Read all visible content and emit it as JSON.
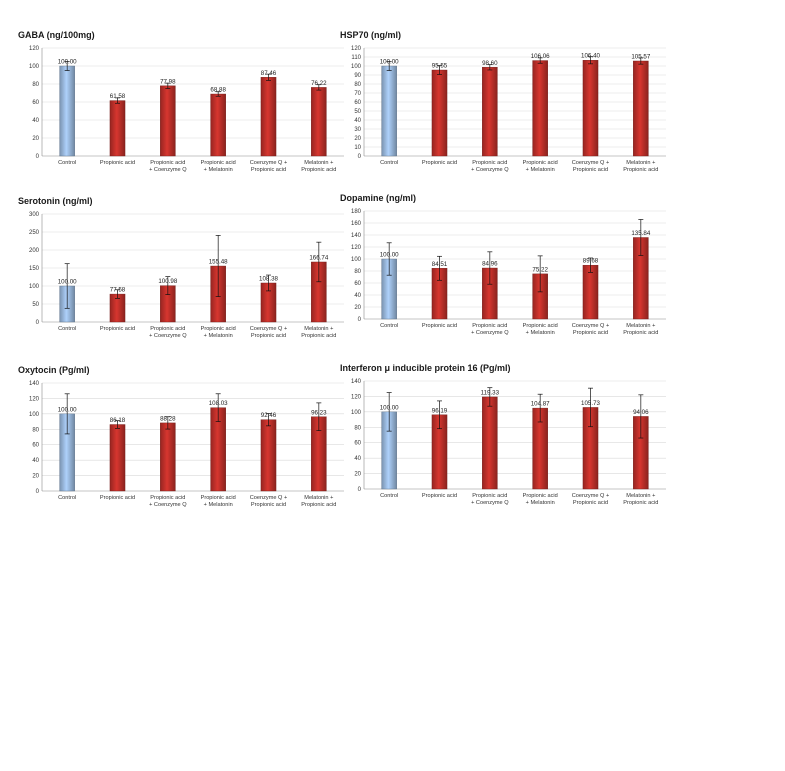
{
  "chart_data": [
    {
      "type": "bar",
      "title": "GABA (ng/100mg)",
      "categories": [
        [
          "Control"
        ],
        [
          "Propionic acid"
        ],
        [
          "Propionic acid",
          "+ Coenzyme Q"
        ],
        [
          "Propionic acid",
          "+ Melatonin"
        ],
        [
          "Coenzyme Q +",
          "Propionic acid"
        ],
        [
          "Melatonin +",
          "Propionic acid"
        ]
      ],
      "values": [
        100.0,
        61.58,
        77.98,
        68.88,
        87.46,
        76.22
      ],
      "value_labels": [
        "100.00",
        "61.58",
        "77.98",
        "68.88",
        "87.46",
        "76.22"
      ],
      "errors": [
        5,
        3,
        3,
        2.5,
        3.5,
        3
      ],
      "ylim": [
        0,
        120
      ],
      "yticks": [
        "0",
        "20",
        "40",
        "60",
        "80",
        "100",
        "120"
      ],
      "grid": true,
      "colors": {
        "control": "#9bbbe0",
        "treatment": "#c0302a"
      }
    },
    {
      "type": "bar",
      "title": "HSP70 (ng/ml)",
      "categories": [
        [
          "Control"
        ],
        [
          "Propionic acid"
        ],
        [
          "Propionic acid",
          "+ Coenzyme Q"
        ],
        [
          "Propionic acid",
          "+ Melatonin"
        ],
        [
          "Coenzyme Q +",
          "Propionic acid"
        ],
        [
          "Melatonin +",
          "Propionic acid"
        ]
      ],
      "values": [
        100.0,
        95.55,
        98.6,
        106.06,
        106.4,
        105.57
      ],
      "value_labels": [
        "100.00",
        "95.55",
        "98.60",
        "106.06",
        "106.40",
        "105.57"
      ],
      "errors": [
        5,
        5,
        3,
        3,
        4,
        3.5
      ],
      "ylim": [
        0,
        120
      ],
      "yticks": [
        "0",
        "10",
        "20",
        "30",
        "40",
        "50",
        "60",
        "70",
        "80",
        "90",
        "100",
        "110",
        "120"
      ],
      "grid": true,
      "colors": {
        "control": "#9bbbe0",
        "treatment": "#c0302a"
      }
    },
    {
      "type": "bar",
      "title": "Serotonin (ng/ml)",
      "categories": [
        [
          "Control"
        ],
        [
          "Propionic acid"
        ],
        [
          "Propionic acid",
          "+ Coenzyme Q"
        ],
        [
          "Propionic acid",
          "+ Melatonin"
        ],
        [
          "Coenzyme Q +",
          "Propionic acid"
        ],
        [
          "Melatonin +",
          "Propionic acid"
        ]
      ],
      "values": [
        100.0,
        77.58,
        100.98,
        155.48,
        108.38,
        166.74
      ],
      "value_labels": [
        "100.00",
        "77.58",
        "100.98",
        "155.48",
        "108.38",
        "166.74"
      ],
      "errors": [
        62,
        12,
        25,
        85,
        22,
        55
      ],
      "ylim": [
        0,
        300
      ],
      "yticks": [
        "0",
        "50",
        "100",
        "150",
        "200",
        "250",
        "300"
      ],
      "grid": true,
      "colors": {
        "control": "#9bbbe0",
        "treatment": "#c0302a"
      }
    },
    {
      "type": "bar",
      "title": "Dopamine (ng/ml)",
      "categories": [
        [
          "Control"
        ],
        [
          "Propionic acid"
        ],
        [
          "Propionic acid",
          "+ Coenzyme Q"
        ],
        [
          "Propionic acid",
          "+ Melatonin"
        ],
        [
          "Coenzyme Q +",
          "Propionic acid"
        ],
        [
          "Melatonin +",
          "Propionic acid"
        ]
      ],
      "values": [
        100.0,
        84.51,
        84.96,
        75.22,
        89.68,
        135.84
      ],
      "value_labels": [
        "100.00",
        "84.51",
        "84.96",
        "75.22",
        "89.68",
        "135.84"
      ],
      "errors": [
        27,
        20,
        27,
        30,
        12,
        30
      ],
      "ylim": [
        0,
        180
      ],
      "yticks": [
        "0",
        "20",
        "40",
        "60",
        "80",
        "100",
        "120",
        "140",
        "160",
        "180"
      ],
      "grid": true,
      "colors": {
        "control": "#9bbbe0",
        "treatment": "#c0302a"
      }
    },
    {
      "type": "bar",
      "title": "Oxytocin (Pg/ml)",
      "categories": [
        [
          "Control"
        ],
        [
          "Propionic acid"
        ],
        [
          "Propionic acid",
          "+ Coenzyme Q"
        ],
        [
          "Propionic acid",
          "+ Melatonin"
        ],
        [
          "Coenzyme Q +",
          "Propionic acid"
        ],
        [
          "Melatonin +",
          "Propionic acid"
        ]
      ],
      "values": [
        100.0,
        86.18,
        88.28,
        108.03,
        92.46,
        96.23
      ],
      "value_labels": [
        "100.00",
        "86.18",
        "88.28",
        "108.03",
        "92.46",
        "96.23"
      ],
      "errors": [
        26,
        5,
        8,
        18,
        8,
        18
      ],
      "ylim": [
        0,
        140
      ],
      "yticks": [
        "0",
        "20",
        "40",
        "60",
        "80",
        "100",
        "120",
        "140"
      ],
      "grid": true,
      "colors": {
        "control": "#9bbbe0",
        "treatment": "#c0302a"
      }
    },
    {
      "type": "bar",
      "title": "Interferon μ inducible protein 16 (Pg/ml)",
      "categories": [
        [
          "Control"
        ],
        [
          "Propionic acid"
        ],
        [
          "Propionic acid",
          "+ Coenzyme Q"
        ],
        [
          "Propionic acid",
          "+ Melatonin"
        ],
        [
          "Coenzyme Q +",
          "Propionic acid"
        ],
        [
          "Melatonin +",
          "Propionic acid"
        ]
      ],
      "values": [
        100.0,
        96.19,
        119.33,
        104.87,
        105.73,
        94.06
      ],
      "value_labels": [
        "100.00",
        "96.19",
        "119.33",
        "104.87",
        "105.73",
        "94.06"
      ],
      "errors": [
        25,
        18,
        12,
        18,
        25,
        28
      ],
      "ylim": [
        0,
        140
      ],
      "yticks": [
        "0",
        "20",
        "40",
        "60",
        "80",
        "100",
        "120",
        "140"
      ],
      "grid": true,
      "colors": {
        "control": "#9bbbe0",
        "treatment": "#c0302a"
      }
    }
  ]
}
